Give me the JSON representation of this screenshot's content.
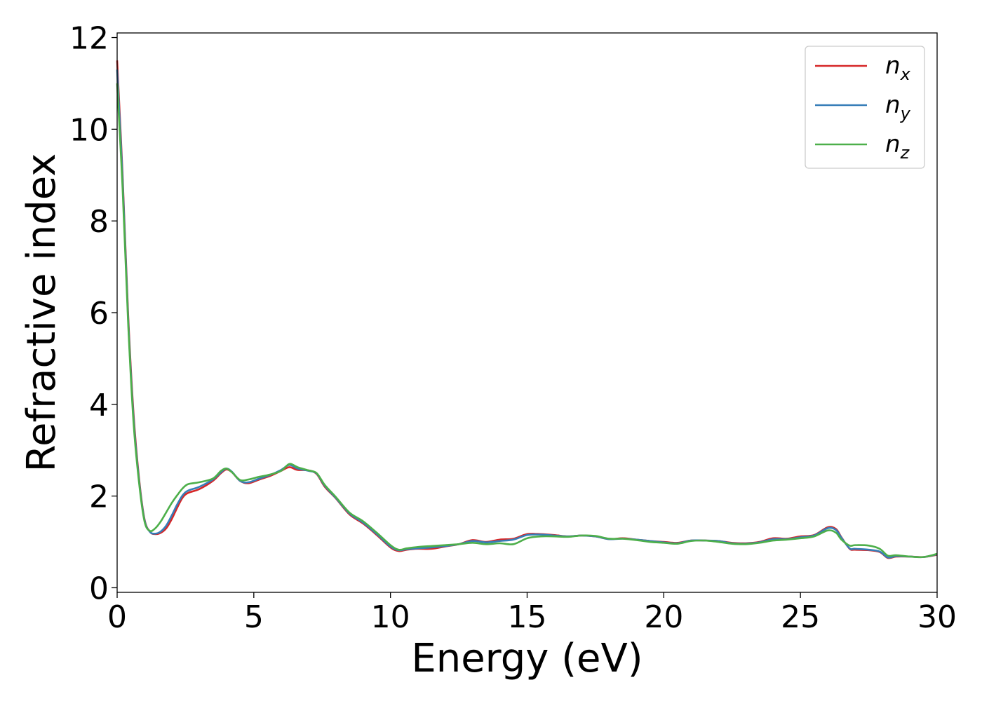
{
  "chart_data": {
    "type": "line",
    "title": "",
    "xlabel": "Energy (eV)",
    "ylabel": "Refractive index",
    "xlim": [
      0,
      30
    ],
    "ylim": [
      -0.1,
      12.1
    ],
    "xticks": [
      0,
      5,
      10,
      15,
      20,
      25,
      30
    ],
    "yticks": [
      0,
      2,
      4,
      6,
      8,
      10,
      12
    ],
    "grid": false,
    "legend_position": "top-right",
    "series": [
      {
        "name": "n_x",
        "name_base": "n",
        "name_sub": "x",
        "color": "#d62728",
        "points": [
          [
            0,
            11.5
          ],
          [
            0.2,
            9.0
          ],
          [
            0.4,
            6.0
          ],
          [
            0.6,
            3.8
          ],
          [
            0.8,
            2.4
          ],
          [
            1.0,
            1.5
          ],
          [
            1.2,
            1.22
          ],
          [
            1.4,
            1.17
          ],
          [
            1.6,
            1.2
          ],
          [
            1.8,
            1.3
          ],
          [
            2.0,
            1.5
          ],
          [
            2.2,
            1.75
          ],
          [
            2.4,
            1.97
          ],
          [
            2.6,
            2.07
          ],
          [
            3.0,
            2.15
          ],
          [
            3.5,
            2.33
          ],
          [
            3.8,
            2.5
          ],
          [
            4.0,
            2.58
          ],
          [
            4.2,
            2.52
          ],
          [
            4.5,
            2.33
          ],
          [
            4.8,
            2.28
          ],
          [
            5.2,
            2.36
          ],
          [
            5.6,
            2.44
          ],
          [
            6.0,
            2.55
          ],
          [
            6.3,
            2.63
          ],
          [
            6.6,
            2.57
          ],
          [
            7.0,
            2.56
          ],
          [
            7.3,
            2.48
          ],
          [
            7.6,
            2.2
          ],
          [
            8.0,
            1.95
          ],
          [
            8.5,
            1.6
          ],
          [
            9.0,
            1.4
          ],
          [
            9.5,
            1.15
          ],
          [
            10.0,
            0.88
          ],
          [
            10.3,
            0.8
          ],
          [
            10.6,
            0.83
          ],
          [
            11.0,
            0.85
          ],
          [
            11.5,
            0.85
          ],
          [
            12.0,
            0.9
          ],
          [
            12.5,
            0.95
          ],
          [
            13.0,
            1.04
          ],
          [
            13.5,
            1.0
          ],
          [
            14.0,
            1.05
          ],
          [
            14.5,
            1.07
          ],
          [
            15.0,
            1.17
          ],
          [
            15.5,
            1.17
          ],
          [
            16.0,
            1.15
          ],
          [
            16.5,
            1.12
          ],
          [
            17.0,
            1.14
          ],
          [
            17.5,
            1.12
          ],
          [
            18.0,
            1.06
          ],
          [
            18.5,
            1.08
          ],
          [
            19.0,
            1.05
          ],
          [
            19.5,
            1.02
          ],
          [
            20.0,
            1.0
          ],
          [
            20.5,
            0.98
          ],
          [
            21.0,
            1.03
          ],
          [
            21.5,
            1.03
          ],
          [
            22.0,
            1.02
          ],
          [
            22.5,
            0.98
          ],
          [
            23.0,
            0.97
          ],
          [
            23.5,
            1.0
          ],
          [
            24.0,
            1.08
          ],
          [
            24.5,
            1.07
          ],
          [
            25.0,
            1.12
          ],
          [
            25.5,
            1.15
          ],
          [
            26.0,
            1.32
          ],
          [
            26.3,
            1.28
          ],
          [
            26.5,
            1.1
          ],
          [
            26.8,
            0.85
          ],
          [
            27.0,
            0.83
          ],
          [
            27.5,
            0.82
          ],
          [
            27.9,
            0.78
          ],
          [
            28.2,
            0.65
          ],
          [
            28.5,
            0.68
          ],
          [
            29.0,
            0.68
          ],
          [
            29.5,
            0.67
          ],
          [
            30.0,
            0.72
          ]
        ]
      },
      {
        "name": "n_y",
        "name_base": "n",
        "name_sub": "y",
        "color": "#377eb8",
        "points": [
          [
            0,
            11.3
          ],
          [
            0.2,
            8.9
          ],
          [
            0.4,
            5.9
          ],
          [
            0.6,
            3.7
          ],
          [
            0.8,
            2.35
          ],
          [
            1.0,
            1.48
          ],
          [
            1.2,
            1.22
          ],
          [
            1.4,
            1.18
          ],
          [
            1.6,
            1.23
          ],
          [
            1.8,
            1.36
          ],
          [
            2.0,
            1.58
          ],
          [
            2.2,
            1.82
          ],
          [
            2.4,
            2.02
          ],
          [
            2.6,
            2.12
          ],
          [
            3.0,
            2.2
          ],
          [
            3.5,
            2.36
          ],
          [
            3.8,
            2.52
          ],
          [
            4.0,
            2.6
          ],
          [
            4.2,
            2.53
          ],
          [
            4.5,
            2.33
          ],
          [
            4.8,
            2.3
          ],
          [
            5.2,
            2.38
          ],
          [
            5.6,
            2.46
          ],
          [
            6.0,
            2.57
          ],
          [
            6.3,
            2.68
          ],
          [
            6.6,
            2.6
          ],
          [
            7.0,
            2.55
          ],
          [
            7.3,
            2.49
          ],
          [
            7.6,
            2.22
          ],
          [
            8.0,
            1.96
          ],
          [
            8.5,
            1.62
          ],
          [
            9.0,
            1.42
          ],
          [
            9.5,
            1.17
          ],
          [
            10.0,
            0.9
          ],
          [
            10.3,
            0.82
          ],
          [
            10.6,
            0.84
          ],
          [
            11.0,
            0.86
          ],
          [
            11.5,
            0.88
          ],
          [
            12.0,
            0.91
          ],
          [
            12.5,
            0.95
          ],
          [
            13.0,
            1.02
          ],
          [
            13.5,
            0.99
          ],
          [
            14.0,
            1.02
          ],
          [
            14.5,
            1.05
          ],
          [
            15.0,
            1.15
          ],
          [
            15.5,
            1.16
          ],
          [
            16.0,
            1.14
          ],
          [
            16.5,
            1.12
          ],
          [
            17.0,
            1.14
          ],
          [
            17.5,
            1.12
          ],
          [
            18.0,
            1.06
          ],
          [
            18.5,
            1.07
          ],
          [
            19.0,
            1.05
          ],
          [
            19.5,
            1.02
          ],
          [
            20.0,
            0.99
          ],
          [
            20.5,
            0.97
          ],
          [
            21.0,
            1.03
          ],
          [
            21.5,
            1.03
          ],
          [
            22.0,
            1.02
          ],
          [
            22.5,
            0.97
          ],
          [
            23.0,
            0.96
          ],
          [
            23.5,
            0.99
          ],
          [
            24.0,
            1.06
          ],
          [
            24.5,
            1.06
          ],
          [
            25.0,
            1.1
          ],
          [
            25.5,
            1.14
          ],
          [
            26.0,
            1.3
          ],
          [
            26.3,
            1.26
          ],
          [
            26.5,
            1.09
          ],
          [
            26.8,
            0.86
          ],
          [
            27.0,
            0.85
          ],
          [
            27.5,
            0.83
          ],
          [
            27.9,
            0.79
          ],
          [
            28.2,
            0.66
          ],
          [
            28.5,
            0.69
          ],
          [
            29.0,
            0.68
          ],
          [
            29.5,
            0.67
          ],
          [
            30.0,
            0.73
          ]
        ]
      },
      {
        "name": "n_z",
        "name_base": "n",
        "name_sub": "z",
        "color": "#4daf4a",
        "points": [
          [
            0,
            11.0
          ],
          [
            0.2,
            8.7
          ],
          [
            0.4,
            5.8
          ],
          [
            0.6,
            3.6
          ],
          [
            0.8,
            2.3
          ],
          [
            1.0,
            1.45
          ],
          [
            1.2,
            1.24
          ],
          [
            1.4,
            1.3
          ],
          [
            1.6,
            1.45
          ],
          [
            1.8,
            1.65
          ],
          [
            2.0,
            1.85
          ],
          [
            2.2,
            2.02
          ],
          [
            2.4,
            2.17
          ],
          [
            2.6,
            2.26
          ],
          [
            3.0,
            2.3
          ],
          [
            3.5,
            2.38
          ],
          [
            3.8,
            2.55
          ],
          [
            4.0,
            2.6
          ],
          [
            4.2,
            2.52
          ],
          [
            4.5,
            2.35
          ],
          [
            4.8,
            2.36
          ],
          [
            5.2,
            2.42
          ],
          [
            5.6,
            2.47
          ],
          [
            6.0,
            2.55
          ],
          [
            6.3,
            2.7
          ],
          [
            6.6,
            2.63
          ],
          [
            7.0,
            2.56
          ],
          [
            7.3,
            2.5
          ],
          [
            7.6,
            2.24
          ],
          [
            8.0,
            1.98
          ],
          [
            8.5,
            1.64
          ],
          [
            9.0,
            1.45
          ],
          [
            9.5,
            1.2
          ],
          [
            10.0,
            0.93
          ],
          [
            10.3,
            0.83
          ],
          [
            10.6,
            0.86
          ],
          [
            11.0,
            0.89
          ],
          [
            11.5,
            0.91
          ],
          [
            12.0,
            0.93
          ],
          [
            12.5,
            0.95
          ],
          [
            13.0,
            0.98
          ],
          [
            13.5,
            0.95
          ],
          [
            14.0,
            0.97
          ],
          [
            14.5,
            0.95
          ],
          [
            15.0,
            1.08
          ],
          [
            15.5,
            1.12
          ],
          [
            16.0,
            1.12
          ],
          [
            16.5,
            1.11
          ],
          [
            17.0,
            1.14
          ],
          [
            17.5,
            1.13
          ],
          [
            18.0,
            1.07
          ],
          [
            18.5,
            1.07
          ],
          [
            19.0,
            1.04
          ],
          [
            19.5,
            1.0
          ],
          [
            20.0,
            0.98
          ],
          [
            20.5,
            0.96
          ],
          [
            21.0,
            1.02
          ],
          [
            21.5,
            1.03
          ],
          [
            22.0,
            1.0
          ],
          [
            22.5,
            0.96
          ],
          [
            23.0,
            0.95
          ],
          [
            23.5,
            0.98
          ],
          [
            24.0,
            1.03
          ],
          [
            24.5,
            1.05
          ],
          [
            25.0,
            1.08
          ],
          [
            25.5,
            1.12
          ],
          [
            26.0,
            1.25
          ],
          [
            26.3,
            1.2
          ],
          [
            26.5,
            1.05
          ],
          [
            26.8,
            0.92
          ],
          [
            27.0,
            0.93
          ],
          [
            27.5,
            0.92
          ],
          [
            27.9,
            0.85
          ],
          [
            28.2,
            0.7
          ],
          [
            28.5,
            0.71
          ],
          [
            29.0,
            0.68
          ],
          [
            29.5,
            0.67
          ],
          [
            30.0,
            0.74
          ]
        ]
      }
    ]
  }
}
